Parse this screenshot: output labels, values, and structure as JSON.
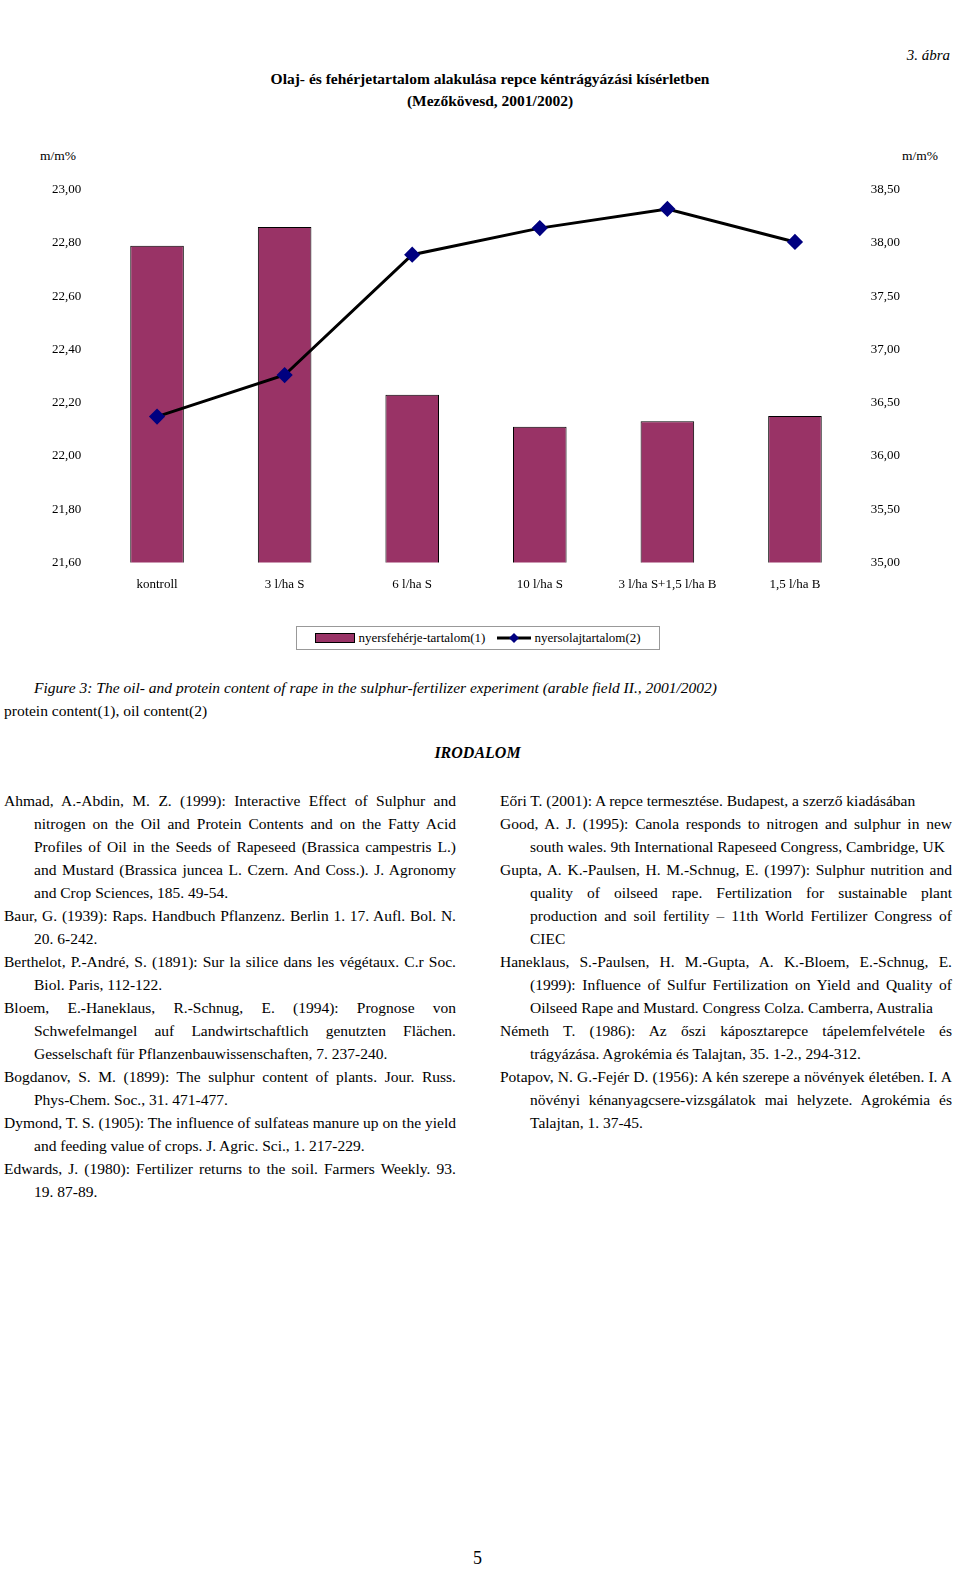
{
  "figure_label": "3. ábra",
  "chart_data": {
    "type": "bar",
    "title": [
      "Olaj- és fehérjetartalom alakulása repce kéntrágyázási kísérletben",
      "(Mezőkövesd, 2001/2002)"
    ],
    "ylabel": "m/m%",
    "y2label": "m/m%",
    "categories": [
      "kontroll",
      "3 l/ha S",
      "6 l/ha S",
      "10 l/ha S",
      "3 l/ha S+1,5 l/ha B",
      "1,5 l/ha B"
    ],
    "series": [
      {
        "name": "nyersfehérje-tartalom(1)",
        "type": "bar",
        "color": "#993366",
        "values": [
          22.79,
          22.86,
          22.23,
          22.11,
          22.13,
          22.15
        ]
      },
      {
        "name": "nyersolajtartalom(2)",
        "type": "line",
        "axis": "y2",
        "color": "#000000",
        "marker": "diamond",
        "values": [
          36.37,
          36.76,
          37.89,
          38.14,
          38.32,
          38.01
        ]
      }
    ],
    "ylim": [
      21.6,
      23.0
    ],
    "yticks": [
      {
        "value": 21.6,
        "label": "21,60"
      },
      {
        "value": 21.8,
        "label": "21,80"
      },
      {
        "value": 22.0,
        "label": "22,00"
      },
      {
        "value": 22.2,
        "label": "22,20"
      },
      {
        "value": 22.4,
        "label": "22,40"
      },
      {
        "value": 22.6,
        "label": "22,60"
      },
      {
        "value": 22.8,
        "label": "22,80"
      },
      {
        "value": 23.0,
        "label": "23,00"
      }
    ],
    "y2lim": [
      35.0,
      38.5
    ],
    "y2ticks": [
      {
        "value": 35.0,
        "label": "35,00"
      },
      {
        "value": 35.5,
        "label": "35,50"
      },
      {
        "value": 36.0,
        "label": "36,00"
      },
      {
        "value": 36.5,
        "label": "36,50"
      },
      {
        "value": 37.0,
        "label": "37,00"
      },
      {
        "value": 37.5,
        "label": "37,50"
      },
      {
        "value": 38.0,
        "label": "38,00"
      },
      {
        "value": 38.5,
        "label": "38,50"
      }
    ],
    "grid": false,
    "legend": "bottom"
  },
  "caption": [
    "Figure 3: The oil- and protein content of rape in the sulphur-fertilizer experiment (arable field II., 2001/2002)",
    "protein content(1), oil content(2)"
  ],
  "section_title": "IRODALOM",
  "references_left": [
    "Ahmad, A.-Abdin, M. Z. (1999): Interactive Effect of Sulphur and nitrogen on the Oil and Protein Contents and on the Fatty Acid Profiles of Oil in the Seeds of Rapeseed (Brassica campestris L.) and Mustard (Brassica juncea L. Czern. And Coss.). J. Agronomy and Crop Sciences, 185. 49-54.",
    "Baur, G. (1939): Raps. Handbuch Pflanzenz. Berlin 1. 17. Aufl. Bol. N. 20. 6-242.",
    "Berthelot, P.-André, S. (1891): Sur la silice dans les végétaux. C.r Soc. Biol. Paris, 112-122.",
    "Bloem, E.-Haneklaus, R.-Schnug, E. (1994): Prognose von Schwefelmangel auf Landwirtschaftlich genutzten Flächen. Gesselschaft für Pflanzenbauwissenschaften, 7. 237-240.",
    "Bogdanov, S. M. (1899): The sulphur content of plants. Jour. Russ. Phys-Chem. Soc., 31. 471-477.",
    "Dymond, T. S. (1905): The influence of sulfateas manure up on the yield and feeding value of crops. J. Agric. Sci., 1. 217-229.",
    "Edwards, J. (1980): Fertilizer returns to the soil. Farmers Weekly. 93. 19. 87-89."
  ],
  "references_right": [
    "Eőri T. (2001): A repce termesztése. Budapest, a szerző kiadásában",
    "Good, A. J. (1995): Canola responds to nitrogen and sulphur in new south wales. 9th International Rapeseed Congress, Cambridge, UK",
    "Gupta, A. K.-Paulsen, H. M.-Schnug, E. (1997): Sulphur nutrition and quality of oilseed rape. Fertilization for sustainable plant production and soil fertility – 11th World Fertilizer Congress of CIEC",
    "Haneklaus, S.-Paulsen, H. M.-Gupta, A. K.-Bloem, E.-Schnug, E. (1999): Influence of Sulfur Fertilization on Yield and Quality of Oilseed Rape and Mustard. Congress Colza. Camberra, Australia",
    "Németh T. (1986): Az őszi káposztarepce tápelemfelvétele és trágyázása. Agrokémia és Talajtan, 35. 1-2., 294-312.",
    "Potapov, N. G.-Fejér D. (1956): A kén szerepe a növények életében. I. A növényi kénanyagcsere-vizsgálatok mai helyzete. Agrokémia és Talajtan, 1. 37-45."
  ],
  "page_number": "5"
}
